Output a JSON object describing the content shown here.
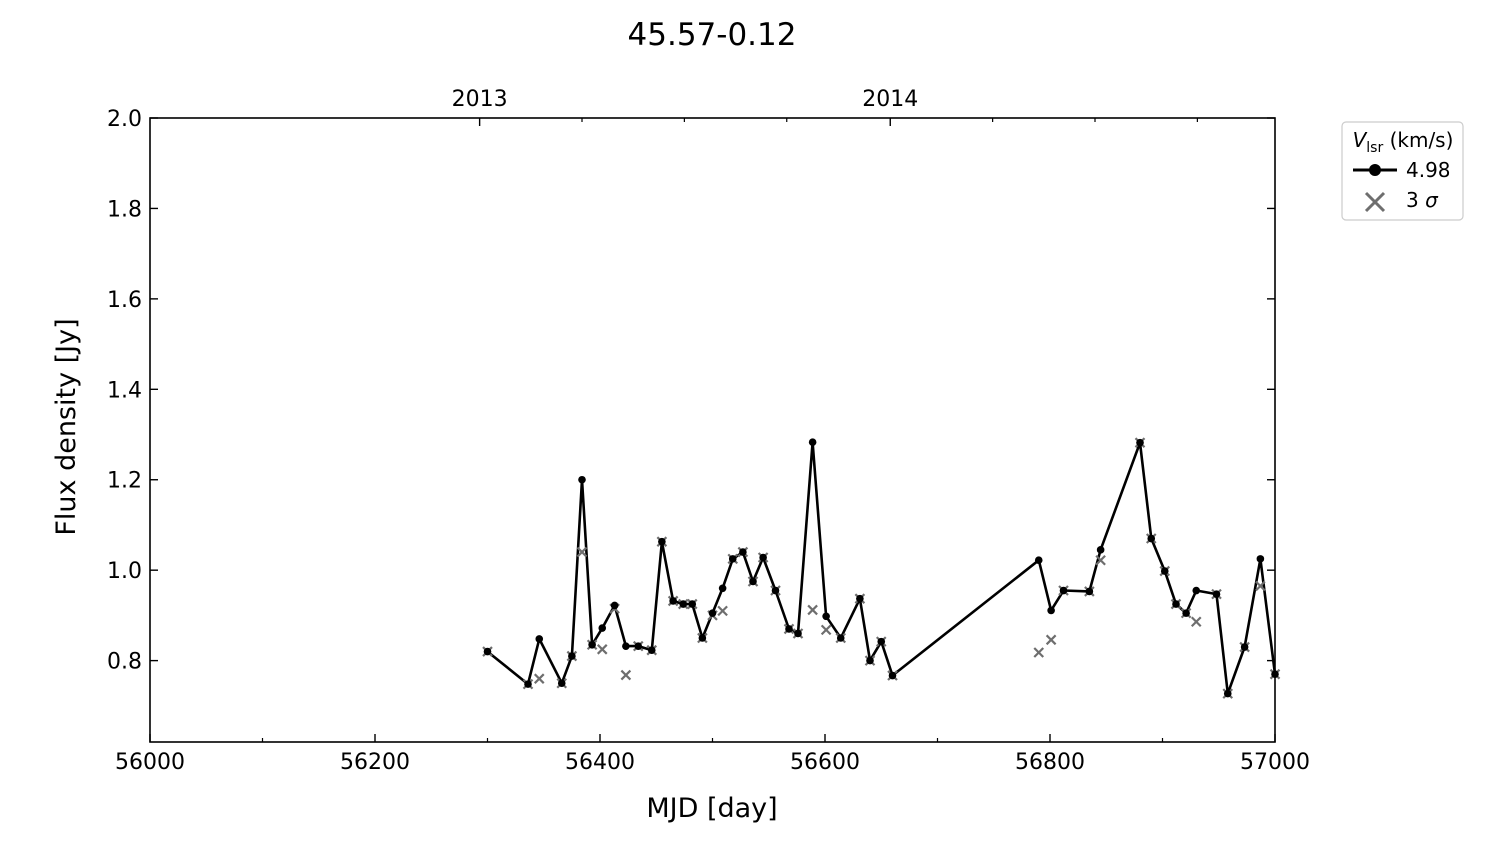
{
  "chart_data": {
    "type": "line",
    "title": "45.57-0.12",
    "xlabel": "MJD [day]",
    "ylabel": "Flux density [Jy]",
    "xlim": [
      56000,
      57000
    ],
    "ylim": [
      0.62,
      2.0
    ],
    "xticks": [
      56000,
      56200,
      56400,
      56600,
      56800,
      57000
    ],
    "xminor_ticks": [
      56100,
      56300,
      56500,
      56700,
      56900
    ],
    "yticks": [
      0.8,
      1.0,
      1.2,
      1.4,
      1.6,
      1.8,
      2.0
    ],
    "ytick_labels": [
      "0.8",
      "1.0",
      "1.2",
      "1.4",
      "1.6",
      "1.8",
      "2.0"
    ],
    "top_axis": {
      "ticks": [
        56293,
        56658
      ],
      "labels": [
        "2013",
        "2014"
      ],
      "minor_ticks": [
        56384,
        56475,
        56566,
        56749,
        56840,
        56931
      ]
    },
    "grid": false,
    "legend": {
      "title_symbol": "V",
      "title_subscript": "lsr",
      "title_suffix": " (km/s)",
      "placement": "outside-right-top",
      "entries": [
        "4.98",
        "3 σ"
      ],
      "entry_value_prefix": "3 ",
      "entry_value_symbol": "σ"
    },
    "series": [
      {
        "name": "4.98",
        "marker": "circle",
        "color": "#000000",
        "x": [
          56300,
          56336,
          56346,
          56366,
          56375,
          56384,
          56393,
          56402,
          56413,
          56423,
          56434,
          56446,
          56455,
          56465,
          56474,
          56482,
          56491,
          56500,
          56509,
          56518,
          56527,
          56536,
          56545,
          56556,
          56568,
          56576,
          56589,
          56601,
          56614,
          56631,
          56640,
          56650,
          56660,
          56790,
          56801,
          56812,
          56835,
          56845,
          56880,
          56890,
          56902,
          56912,
          56921,
          56930,
          56948,
          56958,
          56973,
          56987,
          57000
        ],
        "y": [
          0.82,
          0.748,
          0.848,
          0.75,
          0.81,
          1.2,
          0.835,
          0.872,
          0.922,
          0.832,
          0.832,
          0.823,
          1.063,
          0.932,
          0.925,
          0.925,
          0.85,
          0.905,
          0.96,
          1.025,
          1.04,
          0.975,
          1.028,
          0.955,
          0.87,
          0.86,
          1.283,
          0.898,
          0.85,
          0.937,
          0.8,
          0.842,
          0.767,
          1.022,
          0.911,
          0.955,
          0.953,
          1.045,
          1.282,
          1.07,
          0.998,
          0.925,
          0.905,
          0.955,
          0.947,
          0.727,
          0.83,
          1.025,
          0.77
        ]
      },
      {
        "name": "3 σ",
        "marker": "x",
        "color": "#6e6e6e",
        "x": [
          56300,
          56336,
          56346,
          56366,
          56375,
          56384,
          56393,
          56402,
          56413,
          56423,
          56434,
          56446,
          56455,
          56465,
          56474,
          56482,
          56491,
          56500,
          56509,
          56518,
          56527,
          56536,
          56545,
          56556,
          56568,
          56576,
          56589,
          56601,
          56614,
          56631,
          56640,
          56650,
          56660,
          56790,
          56801,
          56812,
          56835,
          56845,
          56880,
          56890,
          56902,
          56912,
          56921,
          56930,
          56948,
          56958,
          56973,
          56987,
          57000
        ],
        "y": [
          0.82,
          0.748,
          0.76,
          0.75,
          0.81,
          1.04,
          0.835,
          0.825,
          0.915,
          0.768,
          0.832,
          0.823,
          1.063,
          0.932,
          0.925,
          0.925,
          0.85,
          0.9,
          0.91,
          1.025,
          1.04,
          0.975,
          1.028,
          0.955,
          0.87,
          0.86,
          0.912,
          0.868,
          0.85,
          0.937,
          0.8,
          0.842,
          0.767,
          0.818,
          0.846,
          0.955,
          0.953,
          1.022,
          1.282,
          1.07,
          0.998,
          0.925,
          0.905,
          0.886,
          0.947,
          0.727,
          0.83,
          0.965,
          0.77
        ]
      }
    ]
  }
}
